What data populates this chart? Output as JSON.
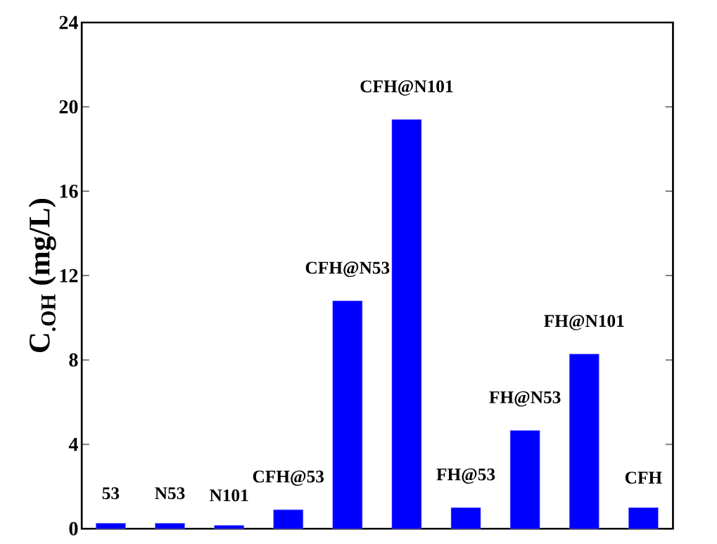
{
  "chart_data": {
    "type": "bar",
    "ylabel": "C$_{.OH}$ (mg/L)",
    "categories": [
      "53",
      "N53",
      "N101",
      "CFH@53",
      "CFH@N53",
      "CFH@N101",
      "FH@53",
      "FH@N53",
      "FH@N101",
      "CFH"
    ],
    "values": [
      0.26,
      0.26,
      0.16,
      0.9,
      10.8,
      19.4,
      1.0,
      4.66,
      8.28,
      1.0
    ],
    "color": "#0000ff",
    "ylim": [
      0,
      24
    ],
    "yticks": [
      0,
      4,
      8,
      12,
      16,
      20,
      24
    ],
    "grid": false
  }
}
